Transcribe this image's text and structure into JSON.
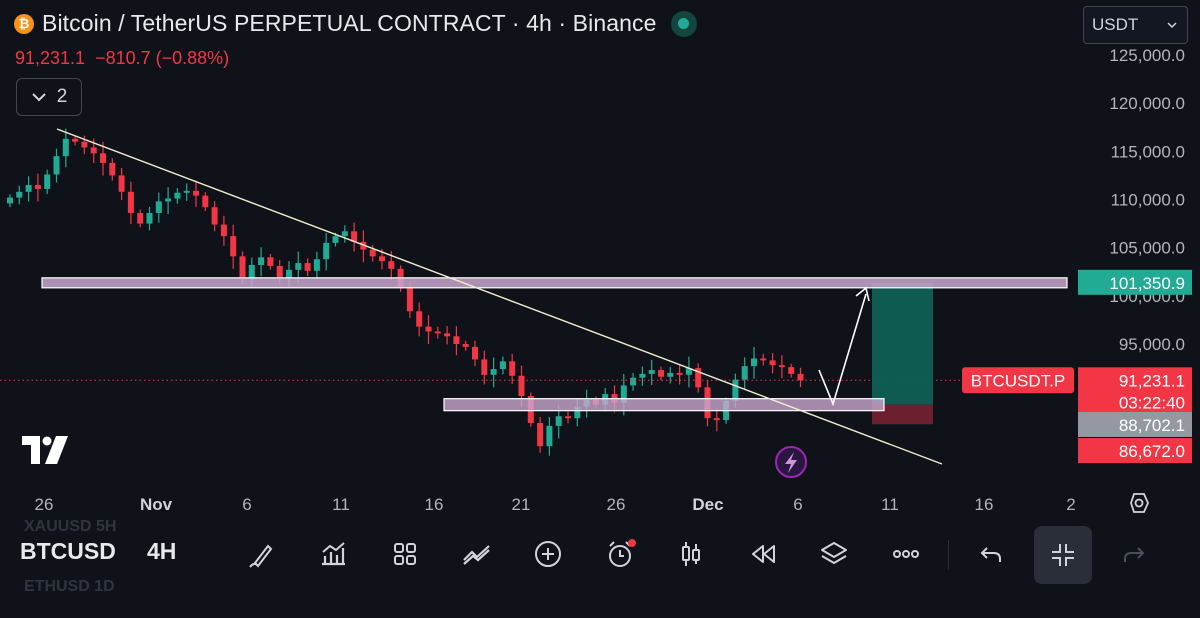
{
  "header": {
    "title": "Bitcoin / TetherUS PERPETUAL CONTRACT · 4h · Binance",
    "last_price": "91,231.1",
    "change": "−810.7 (−0.88%)",
    "indicator_count": "2",
    "coin_symbol": "₿"
  },
  "currency_selector": {
    "value": "USDT"
  },
  "chart_data": {
    "type": "candlestick",
    "x_tick_labels": [
      "26",
      "Nov",
      "6",
      "11",
      "16",
      "21",
      "26",
      "Dec",
      "6",
      "11",
      "16",
      "2"
    ],
    "y_tick_labels": [
      "125,000.0",
      "120,000.0",
      "115,000.0",
      "110,000.0",
      "105,000.0",
      "100,000.0",
      "95,000.0"
    ],
    "ylim": [
      83500,
      127000
    ],
    "current_price": 91231.1,
    "closes": [
      110200,
      110800,
      111500,
      111100,
      112600,
      114500,
      116300,
      116000,
      115400,
      114800,
      113800,
      112500,
      110800,
      108600,
      107500,
      108600,
      109800,
      110100,
      110700,
      110900,
      110400,
      109200,
      107400,
      106200,
      104100,
      101800,
      103200,
      104000,
      103100,
      101900,
      102700,
      103400,
      102600,
      103800,
      105500,
      106200,
      106700,
      105600,
      104800,
      104100,
      103600,
      102800,
      100800,
      98400,
      96800,
      96300,
      96100,
      95800,
      95000,
      94700,
      93400,
      91800,
      92400,
      93200,
      91700,
      89600,
      86800,
      84400,
      86500,
      87500,
      87300,
      88500,
      89200,
      88700,
      89800,
      88900,
      90700,
      91500,
      91900,
      92300,
      91600,
      92000,
      91800,
      92500,
      90500,
      87300,
      87100,
      89100,
      91300,
      92700,
      93500,
      93300,
      92800,
      92600,
      91900,
      91231.1
    ],
    "annotations": {
      "resistance_level": 101350.9,
      "entry_level": 88702.1,
      "stop_level": 86672.0,
      "symbol_tag": "BTCUSDT.P",
      "countdown": "03:22:40",
      "resistance_label": "101,350.9",
      "entry_label": "88,702.1",
      "stop_label": "86,672.0",
      "price_label": "91,231.1"
    },
    "colors": {
      "up": "#22ab94",
      "down": "#f23645",
      "trend": "#f2eecf",
      "zone_fill": "#c9a8cf",
      "target": "#0f5f55",
      "stop": "#6b1f2f"
    }
  },
  "toolbar": {
    "symbol": "BTCUSD",
    "timeframe": "4H",
    "ghost_top": "XAUUSD 5H",
    "ghost_bottom": "ETHUSD 1D",
    "tools": [
      "brush-icon",
      "indicators-icon",
      "layouts-icon",
      "compare-icon",
      "add-icon",
      "alert-icon",
      "candle-type-icon",
      "replay-icon",
      "layers-icon",
      "more-icon",
      "undo-icon",
      "fullscreen-exit-icon",
      "redo-icon"
    ]
  }
}
